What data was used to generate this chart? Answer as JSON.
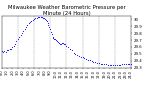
{
  "title": "Milwaukee Weather Barometric Pressure per Minute (24 Hours)",
  "title_fontsize": 3.8,
  "dot_color": "#0000ff",
  "dot_size": 0.6,
  "bg_color": "#ffffff",
  "grid_color": "#888888",
  "ylim": [
    29.3,
    30.05
  ],
  "xlim": [
    0,
    1440
  ],
  "yticks": [
    29.3,
    29.4,
    29.5,
    29.6,
    29.7,
    29.8,
    29.9,
    30.0
  ],
  "ytick_labels": [
    "29.3",
    "29.4",
    "29.5",
    "29.6",
    "29.7",
    "29.8",
    "29.9",
    "30"
  ],
  "ytick_fontsize": 2.8,
  "xtick_fontsize": 2.5,
  "xticks": [
    0,
    60,
    120,
    180,
    240,
    300,
    360,
    420,
    480,
    540,
    600,
    660,
    720,
    780,
    840,
    900,
    960,
    1020,
    1080,
    1140,
    1200,
    1260,
    1320,
    1380,
    1440
  ],
  "xtick_labels": [
    "0:0",
    "1:0",
    "2:0",
    "3:0",
    "4:0",
    "5:0",
    "6:0",
    "7:0",
    "8:0",
    "9:0",
    "10:0",
    "11:0",
    "12:0",
    "13:0",
    "14:0",
    "15:0",
    "16:0",
    "17:0",
    "18:0",
    "19:0",
    "20:0",
    "21:0",
    "22:0",
    "23:0",
    "24:0"
  ],
  "vgrid_positions": [
    180,
    360,
    540,
    720,
    900,
    1080,
    1260
  ],
  "pressure_data": [
    [
      0,
      29.54
    ],
    [
      15,
      29.53
    ],
    [
      30,
      29.54
    ],
    [
      45,
      29.53
    ],
    [
      60,
      29.55
    ],
    [
      75,
      29.56
    ],
    [
      90,
      29.57
    ],
    [
      105,
      29.57
    ],
    [
      120,
      29.6
    ],
    [
      135,
      29.62
    ],
    [
      150,
      29.65
    ],
    [
      165,
      29.68
    ],
    [
      180,
      29.71
    ],
    [
      195,
      29.74
    ],
    [
      210,
      29.77
    ],
    [
      225,
      29.8
    ],
    [
      240,
      29.83
    ],
    [
      255,
      29.86
    ],
    [
      270,
      29.89
    ],
    [
      285,
      29.91
    ],
    [
      300,
      29.94
    ],
    [
      315,
      29.96
    ],
    [
      330,
      29.98
    ],
    [
      345,
      29.99
    ],
    [
      360,
      30.0
    ],
    [
      375,
      30.01
    ],
    [
      390,
      30.02
    ],
    [
      405,
      30.03
    ],
    [
      420,
      30.03
    ],
    [
      435,
      30.03
    ],
    [
      450,
      30.03
    ],
    [
      460,
      30.02
    ],
    [
      470,
      30.01
    ],
    [
      480,
      30.0
    ],
    [
      490,
      29.99
    ],
    [
      500,
      29.97
    ],
    [
      510,
      29.95
    ],
    [
      520,
      29.92
    ],
    [
      530,
      29.89
    ],
    [
      540,
      29.86
    ],
    [
      550,
      29.82
    ],
    [
      560,
      29.78
    ],
    [
      570,
      29.74
    ],
    [
      575,
      29.73
    ],
    [
      580,
      29.72
    ],
    [
      590,
      29.71
    ],
    [
      600,
      29.7
    ],
    [
      610,
      29.69
    ],
    [
      620,
      29.68
    ],
    [
      630,
      29.67
    ],
    [
      640,
      29.66
    ],
    [
      650,
      29.65
    ],
    [
      660,
      29.65
    ],
    [
      670,
      29.66
    ],
    [
      680,
      29.66
    ],
    [
      690,
      29.65
    ],
    [
      700,
      29.64
    ],
    [
      720,
      29.62
    ],
    [
      740,
      29.6
    ],
    [
      760,
      29.57
    ],
    [
      780,
      29.55
    ],
    [
      800,
      29.52
    ],
    [
      820,
      29.5
    ],
    [
      840,
      29.48
    ],
    [
      860,
      29.47
    ],
    [
      880,
      29.46
    ],
    [
      900,
      29.45
    ],
    [
      920,
      29.44
    ],
    [
      940,
      29.43
    ],
    [
      960,
      29.42
    ],
    [
      980,
      29.41
    ],
    [
      1000,
      29.4
    ],
    [
      1020,
      29.39
    ],
    [
      1040,
      29.38
    ],
    [
      1060,
      29.37
    ],
    [
      1080,
      29.37
    ],
    [
      1100,
      29.36
    ],
    [
      1120,
      29.36
    ],
    [
      1140,
      29.35
    ],
    [
      1160,
      29.35
    ],
    [
      1180,
      29.34
    ],
    [
      1200,
      29.34
    ],
    [
      1220,
      29.34
    ],
    [
      1240,
      29.34
    ],
    [
      1260,
      29.34
    ],
    [
      1280,
      29.34
    ],
    [
      1300,
      29.34
    ],
    [
      1320,
      29.34
    ],
    [
      1340,
      29.35
    ],
    [
      1360,
      29.36
    ],
    [
      1380,
      29.36
    ],
    [
      1400,
      29.36
    ],
    [
      1420,
      29.36
    ],
    [
      1440,
      29.35
    ]
  ]
}
